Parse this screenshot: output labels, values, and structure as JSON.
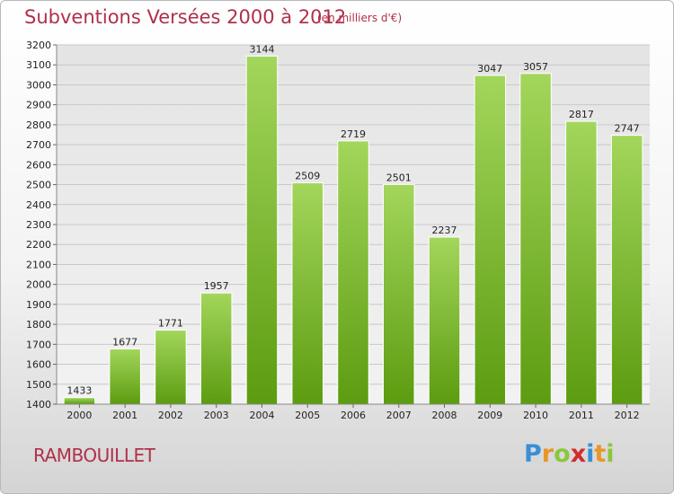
{
  "header": {
    "title": "Subventions Versées 2000 à 2012",
    "subtitle": "(en milliers d'€)"
  },
  "footer": {
    "city": "RAMBOUILLET",
    "logo": "Proxiti"
  },
  "chart_data": {
    "type": "bar",
    "title": "Subventions Versées 2000 à 2012",
    "subtitle": "(en milliers d'€)",
    "xlabel": "",
    "ylabel": "",
    "categories": [
      "2000",
      "2001",
      "2002",
      "2003",
      "2004",
      "2005",
      "2006",
      "2007",
      "2008",
      "2009",
      "2010",
      "2011",
      "2012"
    ],
    "values": [
      1433,
      1677,
      1771,
      1957,
      3144,
      2509,
      2719,
      2501,
      2237,
      3047,
      3057,
      2817,
      2747
    ],
    "ylim": [
      1400,
      3200
    ],
    "yticks": [
      1400,
      1500,
      1600,
      1700,
      1800,
      1900,
      2000,
      2100,
      2200,
      2300,
      2400,
      2500,
      2600,
      2700,
      2800,
      2900,
      3000,
      3100,
      3200
    ],
    "grid": true,
    "legend": "none",
    "colors": {
      "bar_light": "#9fd45a",
      "bar_dark": "#5e9e12",
      "grid": "#c8c8c8",
      "plot_bg": "#ebebeb"
    }
  }
}
